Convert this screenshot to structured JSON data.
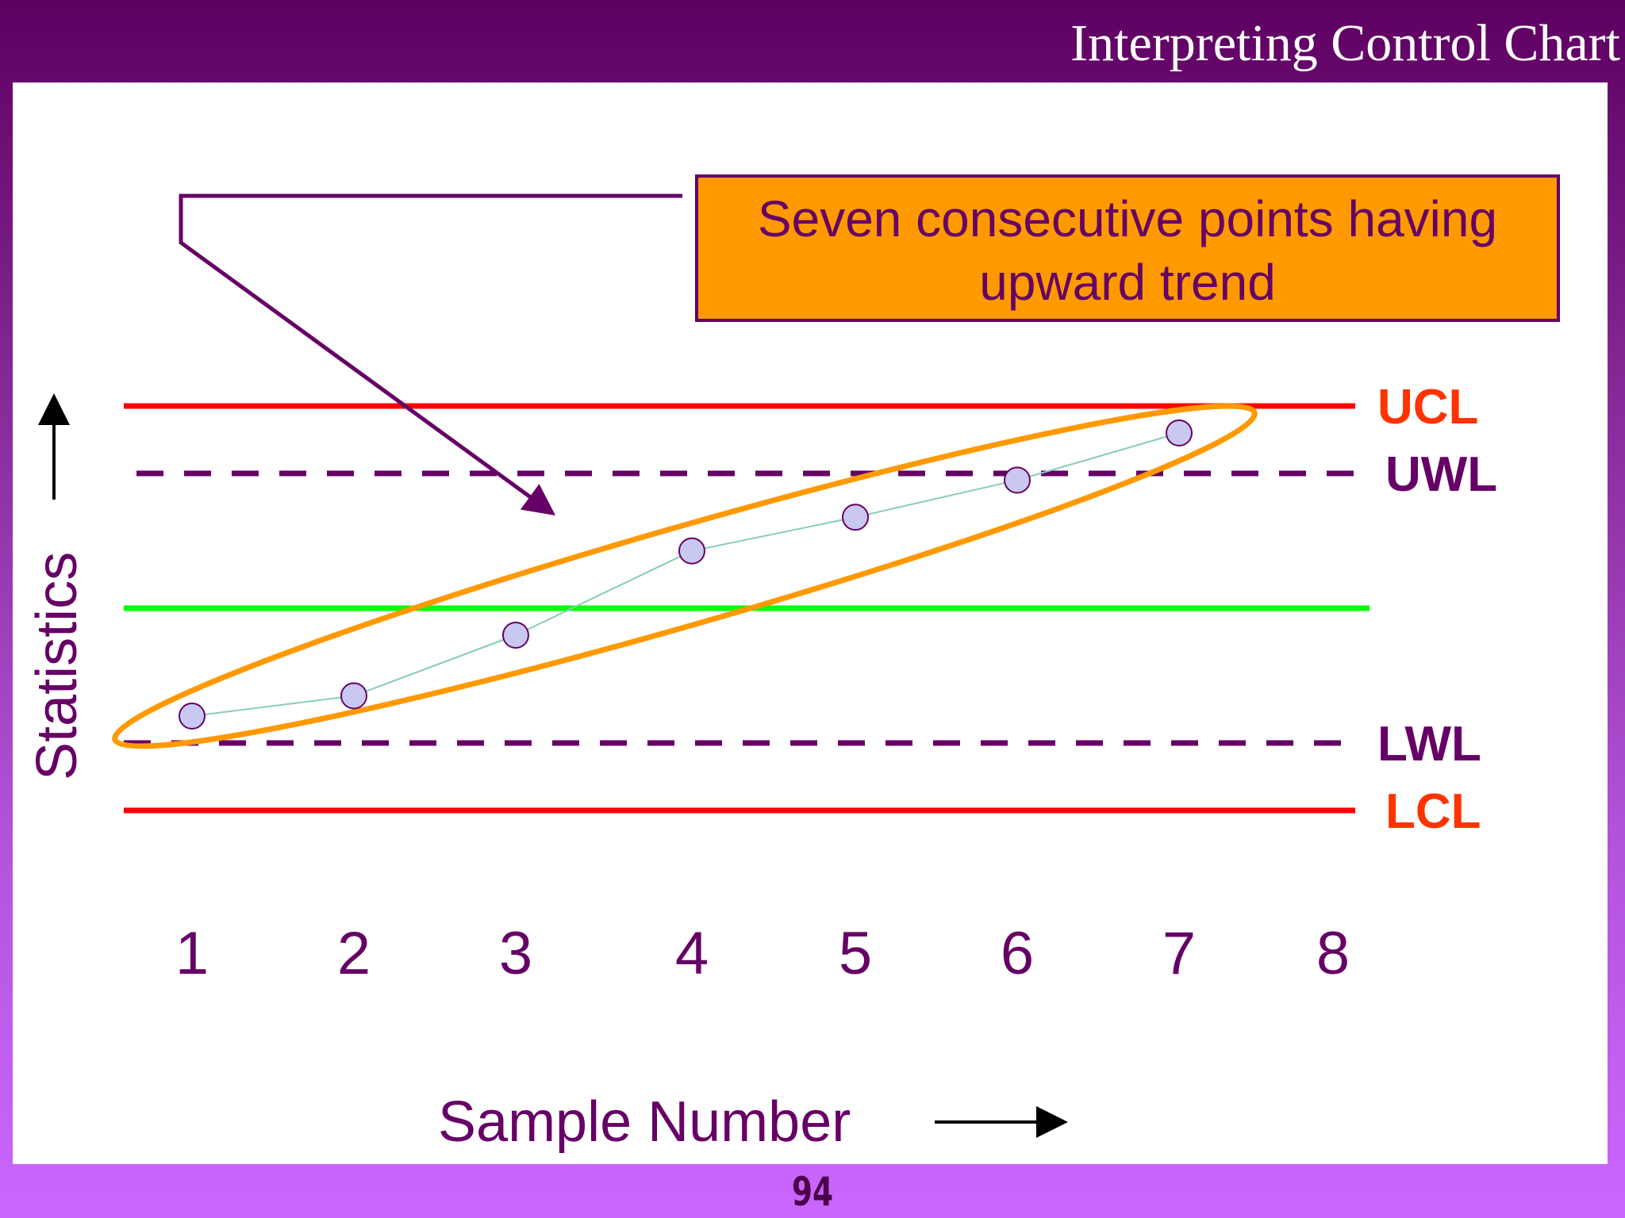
{
  "slide": {
    "title": "Interpreting Control Chart",
    "page_number": "94"
  },
  "colors": {
    "background_top": "#5e0060",
    "background_bottom": "#cc66ff",
    "control_limit": "#ff0000",
    "center_line": "#00ff00",
    "warning_limit": "#660066",
    "text": "#660066",
    "limit_label_red": "#ff3300",
    "highlight_ellipse": "#ff9900",
    "point_fill": "#c8c8f0",
    "callout_fill": "#ff9900"
  },
  "callout": {
    "text": "Seven consecutive points having upward trend"
  },
  "chart_data": {
    "type": "line",
    "xlabel": "Sample Number",
    "ylabel": "Statistics",
    "x_ticks": [
      "1",
      "2",
      "3",
      "4",
      "5",
      "6",
      "7",
      "8"
    ],
    "ylim": [
      -3,
      3
    ],
    "limits": [
      {
        "label": "UCL",
        "value": 3,
        "style": "solid",
        "color": "#ff0000",
        "label_color": "#ff3300"
      },
      {
        "label": "UWL",
        "value": 2,
        "style": "dashed",
        "color": "#660066",
        "label_color": "#660066"
      },
      {
        "label": "",
        "value": 0,
        "style": "solid",
        "color": "#00ff00",
        "label_color": ""
      },
      {
        "label": "LWL",
        "value": -2,
        "style": "dashed",
        "color": "#660066",
        "label_color": "#660066"
      },
      {
        "label": "LCL",
        "value": -3,
        "style": "solid",
        "color": "#ff0000",
        "label_color": "#ff3300"
      }
    ],
    "points": [
      {
        "x": 1,
        "y": -1.6
      },
      {
        "x": 2,
        "y": -1.3
      },
      {
        "x": 3,
        "y": -0.4
      },
      {
        "x": 4,
        "y": 0.85
      },
      {
        "x": 5,
        "y": 1.35
      },
      {
        "x": 6,
        "y": 1.9
      },
      {
        "x": 7,
        "y": 2.6
      }
    ],
    "highlight": "ellipse around points 1–7",
    "grid": false
  }
}
